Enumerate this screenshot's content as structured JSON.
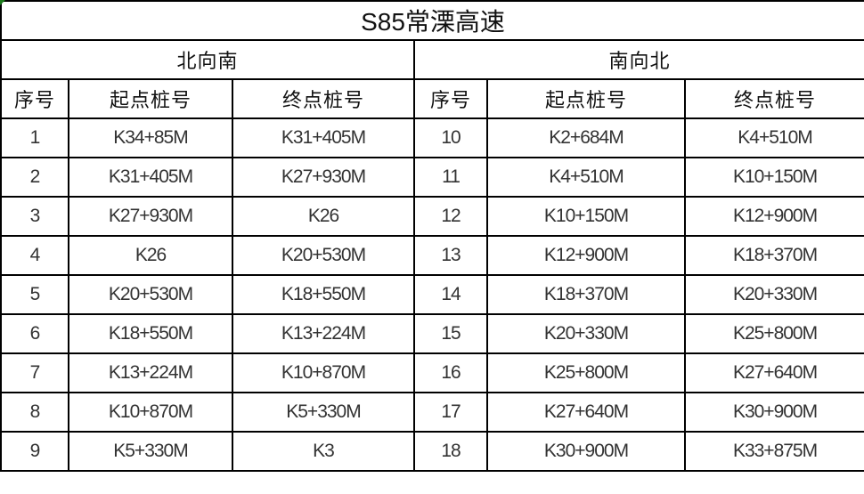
{
  "title": "S85常溧高速",
  "directions": [
    "北向南",
    "南向北"
  ],
  "headers": [
    "序号",
    "起点桩号",
    "终点桩号",
    "序号",
    "起点桩号",
    "终点桩号"
  ],
  "rows": [
    [
      "1",
      "K34+85M",
      "K31+405M",
      "10",
      "K2+684M",
      "K4+510M"
    ],
    [
      "2",
      "K31+405M",
      "K27+930M",
      "11",
      "K4+510M",
      "K10+150M"
    ],
    [
      "3",
      "K27+930M",
      "K26",
      "12",
      "K10+150M",
      "K12+900M"
    ],
    [
      "4",
      "K26",
      "K20+530M",
      "13",
      "K12+900M",
      "K18+370M"
    ],
    [
      "5",
      "K20+530M",
      "K18+550M",
      "14",
      "K18+370M",
      "K20+330M"
    ],
    [
      "6",
      "K18+550M",
      "K13+224M",
      "15",
      "K20+330M",
      "K25+800M"
    ],
    [
      "7",
      "K13+224M",
      "K10+870M",
      "16",
      "K25+800M",
      "K27+640M"
    ],
    [
      "8",
      "K10+870M",
      "K5+330M",
      "17",
      "K27+640M",
      "K30+900M"
    ],
    [
      "9",
      "K5+330M",
      "K3",
      "18",
      "K30+900M",
      "K33+875M"
    ]
  ]
}
